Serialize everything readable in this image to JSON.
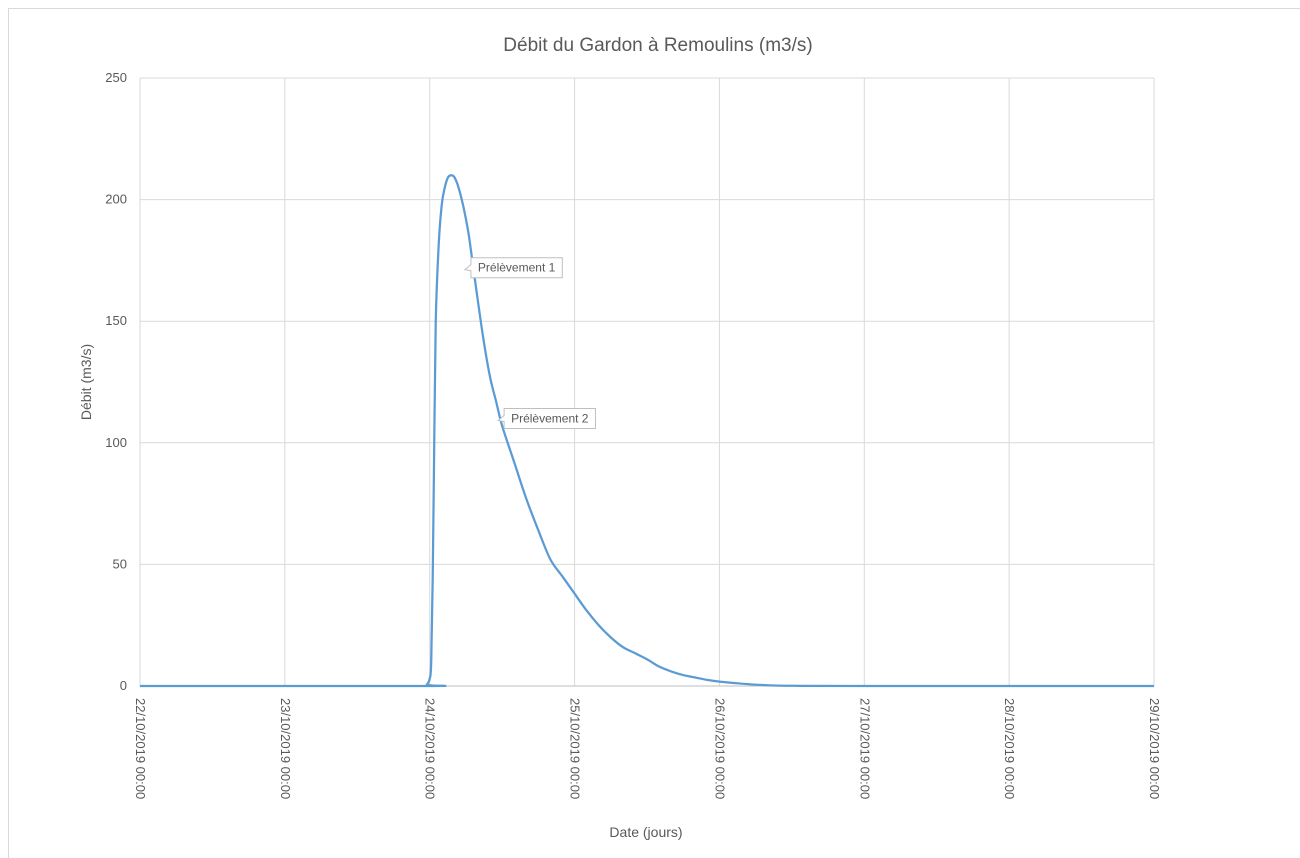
{
  "chart_data": {
    "type": "line",
    "title": "Débit du Gardon à Remoulins (m3/s)",
    "xlabel": "Date (jours)",
    "ylabel": "Débit (m3/s)",
    "ylim": [
      0,
      250
    ],
    "yticks": [
      0,
      50,
      100,
      150,
      200,
      250
    ],
    "xlim": [
      "22/10/2019 00:00",
      "29/10/2019 00:00"
    ],
    "xticks": [
      "22/10/2019 00:00",
      "23/10/2019 00:00",
      "24/10/2019 00:00",
      "25/10/2019 00:00",
      "26/10/2019 00:00",
      "27/10/2019 00:00",
      "28/10/2019 00:00",
      "29/10/2019 00:00"
    ],
    "grid": true,
    "line_color": "#5b9bd5",
    "series": [
      {
        "x": [
          "22/10/2019 00:00",
          "23/10/2019 23:00",
          "23/10/2019 23:30",
          "24/10/2019 00:00",
          "24/10/2019 00:15",
          "24/10/2019 00:30",
          "24/10/2019 00:45",
          "24/10/2019 01:00",
          "24/10/2019 01:30",
          "24/10/2019 02:00",
          "24/10/2019 02:30",
          "24/10/2019 03:00",
          "24/10/2019 03:30",
          "24/10/2019 04:00",
          "24/10/2019 04:30",
          "24/10/2019 05:00",
          "24/10/2019 05:30",
          "24/10/2019 06:00",
          "24/10/2019 06:30",
          "24/10/2019 07:00",
          "24/10/2019 08:00",
          "24/10/2019 09:00",
          "24/10/2019 10:00",
          "24/10/2019 11:00",
          "24/10/2019 12:00",
          "24/10/2019 14:00",
          "24/10/2019 16:00",
          "24/10/2019 18:00",
          "24/10/2019 20:00",
          "24/10/2019 22:00",
          "25/10/2019 00:00",
          "25/10/2019 02:00",
          "25/10/2019 04:00",
          "25/10/2019 06:00",
          "25/10/2019 08:00",
          "25/10/2019 10:00",
          "25/10/2019 12:00",
          "25/10/2019 14:00",
          "25/10/2019 16:00",
          "25/10/2019 18:00",
          "25/10/2019 20:00",
          "25/10/2019 22:00",
          "26/10/2019 00:00",
          "26/10/2019 04:00",
          "26/10/2019 08:00",
          "26/10/2019 12:00",
          "27/10/2019 00:00",
          "29/10/2019 00:00"
        ],
        "y": [
          0,
          0,
          0.5,
          3,
          10,
          45,
          100,
          150,
          182,
          198,
          205,
          209,
          210,
          209.5,
          207,
          203,
          198,
          192,
          185,
          176,
          158,
          141,
          127,
          117,
          107,
          92,
          77,
          64,
          52,
          45,
          38,
          31,
          25,
          20,
          16,
          13.5,
          11,
          8,
          6,
          4.5,
          3.5,
          2.5,
          1.8,
          0.9,
          0.3,
          0.1,
          0,
          0
        ]
      }
    ],
    "annotations": [
      {
        "label": "Prélèvement 1",
        "x": "24/10/2019 05:30",
        "y": 172
      },
      {
        "label": "Prélèvement 2",
        "x": "24/10/2019 11:00",
        "y": 110
      }
    ]
  }
}
